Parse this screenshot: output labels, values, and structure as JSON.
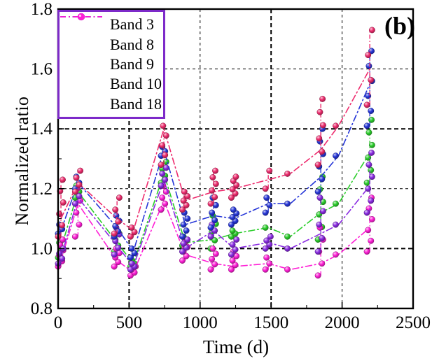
{
  "figure": {
    "panel_label": "(b)",
    "background": "#ffffff",
    "frame_color": "#000000",
    "legend_border_color": "#7d2ac9"
  },
  "legend": {
    "position": "top-left",
    "items": [
      {
        "label": "Band 3",
        "color": "#2bce2b",
        "marker": "sphere",
        "line_style": "dash-dot"
      },
      {
        "label": "Band 8",
        "color": "#ee2c6e",
        "marker": "sphere",
        "line_style": "dash-dot"
      },
      {
        "label": "Band 9",
        "color": "#2636d8",
        "marker": "sphere",
        "line_style": "dash-dot"
      },
      {
        "label": "Band 10",
        "color": "#8a2be2",
        "marker": "sphere",
        "line_style": "dash-dot"
      },
      {
        "label": "Band 18",
        "color": "#ff1fd6",
        "marker": "sphere",
        "line_style": "dash-dot"
      }
    ]
  },
  "chart_data": {
    "type": "scatter",
    "title": "",
    "xlabel": "Time (d)",
    "ylabel": "Normalized ratio",
    "xlim": [
      0,
      2500
    ],
    "ylim": [
      0.8,
      1.8
    ],
    "x_major_ticks": [
      0,
      500,
      1000,
      1500,
      2000,
      2500
    ],
    "x_minor_ticks": [
      250,
      750,
      1250,
      1750,
      2250
    ],
    "y_major_ticks": [
      0.8,
      1.0,
      1.2,
      1.4,
      1.6,
      1.8
    ],
    "y_minor_ticks": [
      0.9,
      1.1,
      1.3,
      1.5,
      1.7
    ],
    "grid": "dashed at major ticks (1.0/1.4 and 500/1500 bold)",
    "grid_bold_x": [
      500,
      1500
    ],
    "grid_bold_y": [
      1.0,
      1.4
    ],
    "legend_position": "top-left",
    "marker": "sphere",
    "line_style": "dash-dot",
    "series": [
      {
        "name": "Band 3",
        "color": "#2bce2b",
        "clusters": [
          {
            "t": 20,
            "trend": 1.0,
            "min": 0.97,
            "max": 1.02,
            "n": 3
          },
          {
            "t": 140,
            "trend": 1.19,
            "min": 1.17,
            "max": 1.21,
            "n": 3
          },
          {
            "t": 415,
            "trend": 1.02,
            "min": 0.99,
            "max": 1.05,
            "n": 4
          },
          {
            "t": 530,
            "trend": 0.95,
            "min": 0.94,
            "max": 0.96,
            "n": 3
          },
          {
            "t": 745,
            "trend": 1.25,
            "min": 1.22,
            "max": 1.29,
            "n": 4
          },
          {
            "t": 895,
            "trend": 1.02,
            "min": 1.01,
            "max": 1.04,
            "n": 3
          },
          {
            "t": 1095,
            "trend": 1.03,
            "min": 1.0,
            "max": 1.11,
            "n": 5
          },
          {
            "t": 1240,
            "trend": 1.05,
            "min": 1.04,
            "max": 1.06,
            "n": 3
          },
          {
            "t": 1480,
            "trend": 1.07,
            "min": 1.07,
            "max": 1.07,
            "n": 1
          },
          {
            "t": 1635,
            "trend": 1.04,
            "min": 1.04,
            "max": 1.04,
            "n": 1
          },
          {
            "t": 1850,
            "trend": 1.12,
            "min": 1.03,
            "max": 1.24,
            "n": 6
          },
          {
            "t": 1975,
            "trend": 1.15,
            "min": 1.15,
            "max": 1.15,
            "n": 1
          },
          {
            "t": 2195,
            "trend": 1.32,
            "min": 1.22,
            "max": 1.43,
            "n": 6
          }
        ]
      },
      {
        "name": "Band 8",
        "color": "#ee2c6e",
        "clusters": [
          {
            "t": 20,
            "trend": 1.1,
            "min": 1.04,
            "max": 1.23,
            "n": 6
          },
          {
            "t": 140,
            "trend": 1.22,
            "min": 1.19,
            "max": 1.26,
            "n": 4
          },
          {
            "t": 415,
            "trend": 1.1,
            "min": 1.05,
            "max": 1.17,
            "n": 4
          },
          {
            "t": 530,
            "trend": 1.06,
            "min": 1.04,
            "max": 1.07,
            "n": 3
          },
          {
            "t": 745,
            "trend": 1.4,
            "min": 1.28,
            "max": 1.41,
            "n": 5
          },
          {
            "t": 895,
            "trend": 1.16,
            "min": 1.13,
            "max": 1.19,
            "n": 5
          },
          {
            "t": 1095,
            "trend": 1.19,
            "min": 1.15,
            "max": 1.26,
            "n": 6
          },
          {
            "t": 1240,
            "trend": 1.2,
            "min": 1.17,
            "max": 1.24,
            "n": 6
          },
          {
            "t": 1480,
            "trend": 1.23,
            "min": 1.2,
            "max": 1.26,
            "n": 2
          },
          {
            "t": 1635,
            "trend": 1.25,
            "min": 1.25,
            "max": 1.25,
            "n": 1
          },
          {
            "t": 1850,
            "trend": 1.33,
            "min": 1.28,
            "max": 1.5,
            "n": 6
          },
          {
            "t": 1975,
            "trend": 1.41,
            "min": 1.41,
            "max": 1.41,
            "n": 1
          },
          {
            "t": 2195,
            "trend": 1.6,
            "min": 1.48,
            "max": 1.73,
            "n": 4
          }
        ]
      },
      {
        "name": "Band 9",
        "color": "#2636d8",
        "clusters": [
          {
            "t": 20,
            "trend": 1.06,
            "min": 1.05,
            "max": 1.08,
            "n": 3
          },
          {
            "t": 140,
            "trend": 1.22,
            "min": 1.2,
            "max": 1.24,
            "n": 3
          },
          {
            "t": 415,
            "trend": 1.07,
            "min": 1.04,
            "max": 1.11,
            "n": 5
          },
          {
            "t": 530,
            "trend": 0.99,
            "min": 0.97,
            "max": 1.0,
            "n": 3
          },
          {
            "t": 745,
            "trend": 1.33,
            "min": 1.31,
            "max": 1.34,
            "n": 3
          },
          {
            "t": 895,
            "trend": 1.08,
            "min": 1.04,
            "max": 1.12,
            "n": 5
          },
          {
            "t": 1095,
            "trend": 1.11,
            "min": 1.07,
            "max": 1.17,
            "n": 5
          },
          {
            "t": 1240,
            "trend": 1.1,
            "min": 1.08,
            "max": 1.13,
            "n": 5
          },
          {
            "t": 1480,
            "trend": 1.15,
            "min": 1.12,
            "max": 1.17,
            "n": 3
          },
          {
            "t": 1635,
            "trend": 1.15,
            "min": 1.15,
            "max": 1.15,
            "n": 1
          },
          {
            "t": 1850,
            "trend": 1.24,
            "min": 1.19,
            "max": 1.4,
            "n": 6
          },
          {
            "t": 1975,
            "trend": 1.31,
            "min": 1.31,
            "max": 1.31,
            "n": 1
          },
          {
            "t": 2195,
            "trend": 1.55,
            "min": 1.41,
            "max": 1.66,
            "n": 6
          }
        ]
      },
      {
        "name": "Band 10",
        "color": "#8a2be2",
        "clusters": [
          {
            "t": 20,
            "trend": 0.97,
            "min": 0.95,
            "max": 1.0,
            "n": 4
          },
          {
            "t": 140,
            "trend": 1.17,
            "min": 1.15,
            "max": 1.2,
            "n": 3
          },
          {
            "t": 415,
            "trend": 1.01,
            "min": 0.98,
            "max": 1.07,
            "n": 5
          },
          {
            "t": 530,
            "trend": 0.94,
            "min": 0.93,
            "max": 0.95,
            "n": 3
          },
          {
            "t": 745,
            "trend": 1.23,
            "min": 1.21,
            "max": 1.27,
            "n": 4
          },
          {
            "t": 895,
            "trend": 1.0,
            "min": 0.99,
            "max": 1.03,
            "n": 4
          },
          {
            "t": 1095,
            "trend": 1.06,
            "min": 1.04,
            "max": 1.08,
            "n": 3
          },
          {
            "t": 1240,
            "trend": 1.0,
            "min": 0.98,
            "max": 1.03,
            "n": 4
          },
          {
            "t": 1480,
            "trend": 1.02,
            "min": 1.0,
            "max": 1.04,
            "n": 4
          },
          {
            "t": 1635,
            "trend": 1.0,
            "min": 1.0,
            "max": 1.0,
            "n": 1
          },
          {
            "t": 1850,
            "trend": 1.05,
            "min": 0.99,
            "max": 1.17,
            "n": 5
          },
          {
            "t": 1975,
            "trend": 1.08,
            "min": 1.08,
            "max": 1.08,
            "n": 1
          },
          {
            "t": 2195,
            "trend": 1.21,
            "min": 1.12,
            "max": 1.32,
            "n": 6
          }
        ]
      },
      {
        "name": "Band 18",
        "color": "#ff1fd6",
        "clusters": [
          {
            "t": 20,
            "trend": 0.96,
            "min": 0.94,
            "max": 1.03,
            "n": 6
          },
          {
            "t": 140,
            "trend": 1.15,
            "min": 1.04,
            "max": 1.2,
            "n": 5
          },
          {
            "t": 415,
            "trend": 0.96,
            "min": 0.94,
            "max": 1.0,
            "n": 5
          },
          {
            "t": 530,
            "trend": 0.92,
            "min": 0.91,
            "max": 0.94,
            "n": 4
          },
          {
            "t": 745,
            "trend": 1.16,
            "min": 1.13,
            "max": 1.21,
            "n": 5
          },
          {
            "t": 895,
            "trend": 0.98,
            "min": 0.96,
            "max": 1.02,
            "n": 5
          },
          {
            "t": 1095,
            "trend": 0.95,
            "min": 0.93,
            "max": 1.0,
            "n": 5
          },
          {
            "t": 1240,
            "trend": 0.94,
            "min": 0.93,
            "max": 0.99,
            "n": 5
          },
          {
            "t": 1480,
            "trend": 0.95,
            "min": 0.93,
            "max": 0.97,
            "n": 3
          },
          {
            "t": 1635,
            "trend": 0.93,
            "min": 0.93,
            "max": 0.93,
            "n": 1
          },
          {
            "t": 1850,
            "trend": 0.95,
            "min": 0.91,
            "max": 1.07,
            "n": 5
          },
          {
            "t": 1975,
            "trend": 0.98,
            "min": 0.98,
            "max": 0.98,
            "n": 1
          },
          {
            "t": 2195,
            "trend": 1.07,
            "min": 0.99,
            "max": 1.17,
            "n": 6
          }
        ]
      }
    ]
  }
}
